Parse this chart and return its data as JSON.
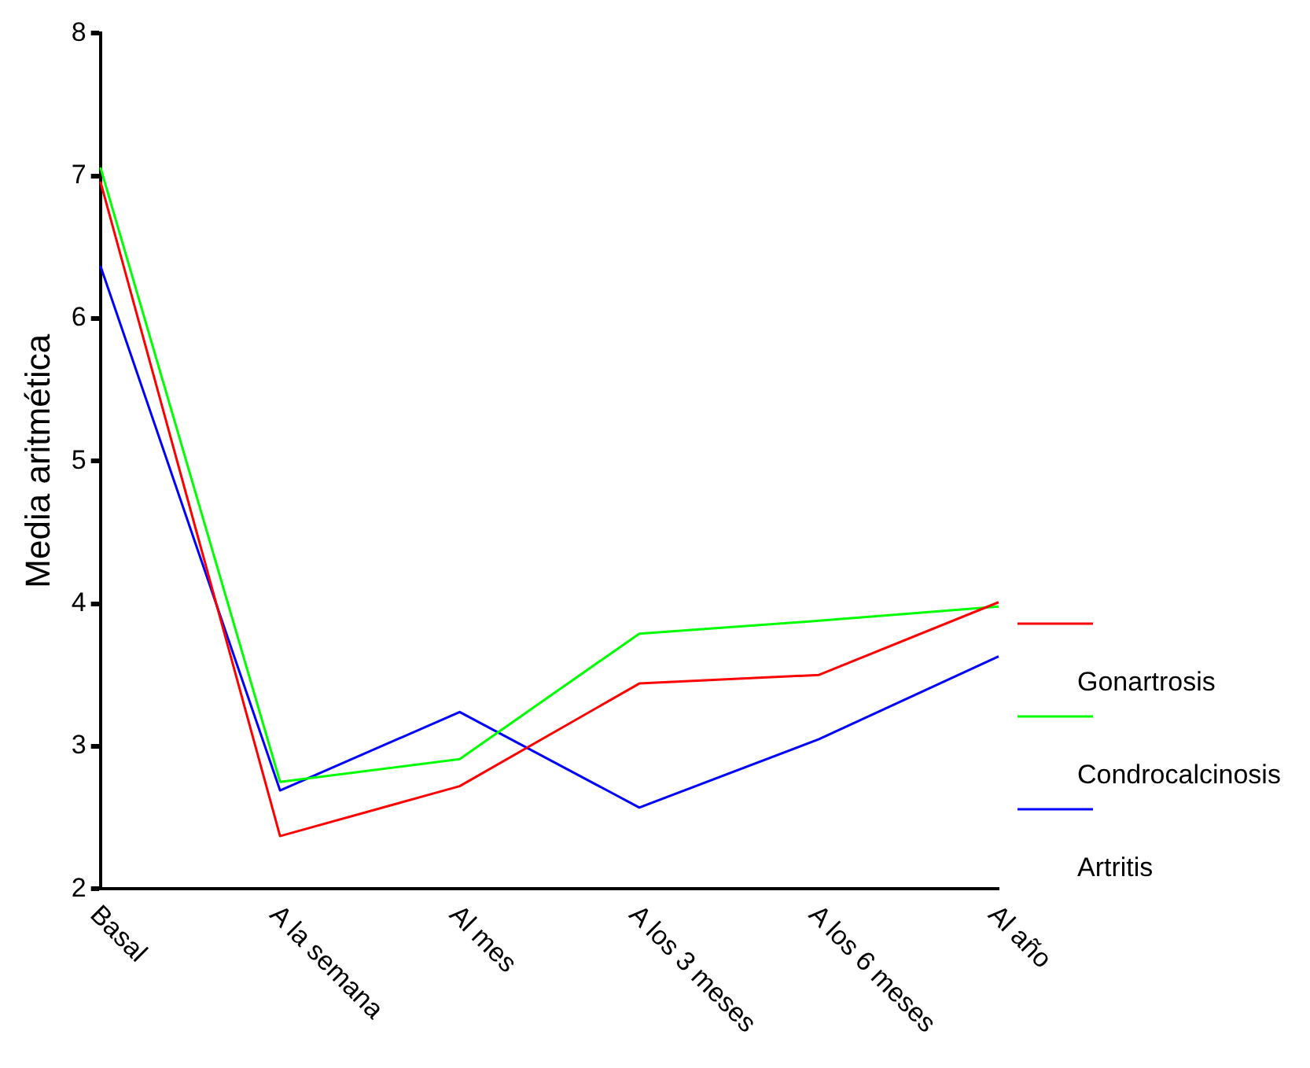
{
  "chart_data": {
    "type": "line",
    "ylabel": "Media aritmética",
    "categories": [
      "Basal",
      "A la semana",
      "Al mes",
      "A los 3 meses",
      "A los 6 meses",
      "Al año"
    ],
    "series": [
      {
        "name": "Gonartrosis",
        "color": "#ff0000",
        "values": [
          6.96,
          2.37,
          2.72,
          3.44,
          3.5,
          4.01
        ]
      },
      {
        "name": "Condrocalcinosis",
        "color": "#00ff00",
        "values": [
          7.06,
          2.75,
          2.91,
          3.79,
          3.88,
          3.98
        ]
      },
      {
        "name": "Artritis",
        "color": "#0000ff",
        "values": [
          6.37,
          2.69,
          3.24,
          2.57,
          3.05,
          3.63
        ]
      }
    ],
    "ylim": [
      2,
      8
    ],
    "yticks": [
      2,
      3,
      4,
      5,
      6,
      7,
      8
    ],
    "grid": false,
    "legend": "right",
    "marker": "none",
    "line_style": "solid"
  }
}
